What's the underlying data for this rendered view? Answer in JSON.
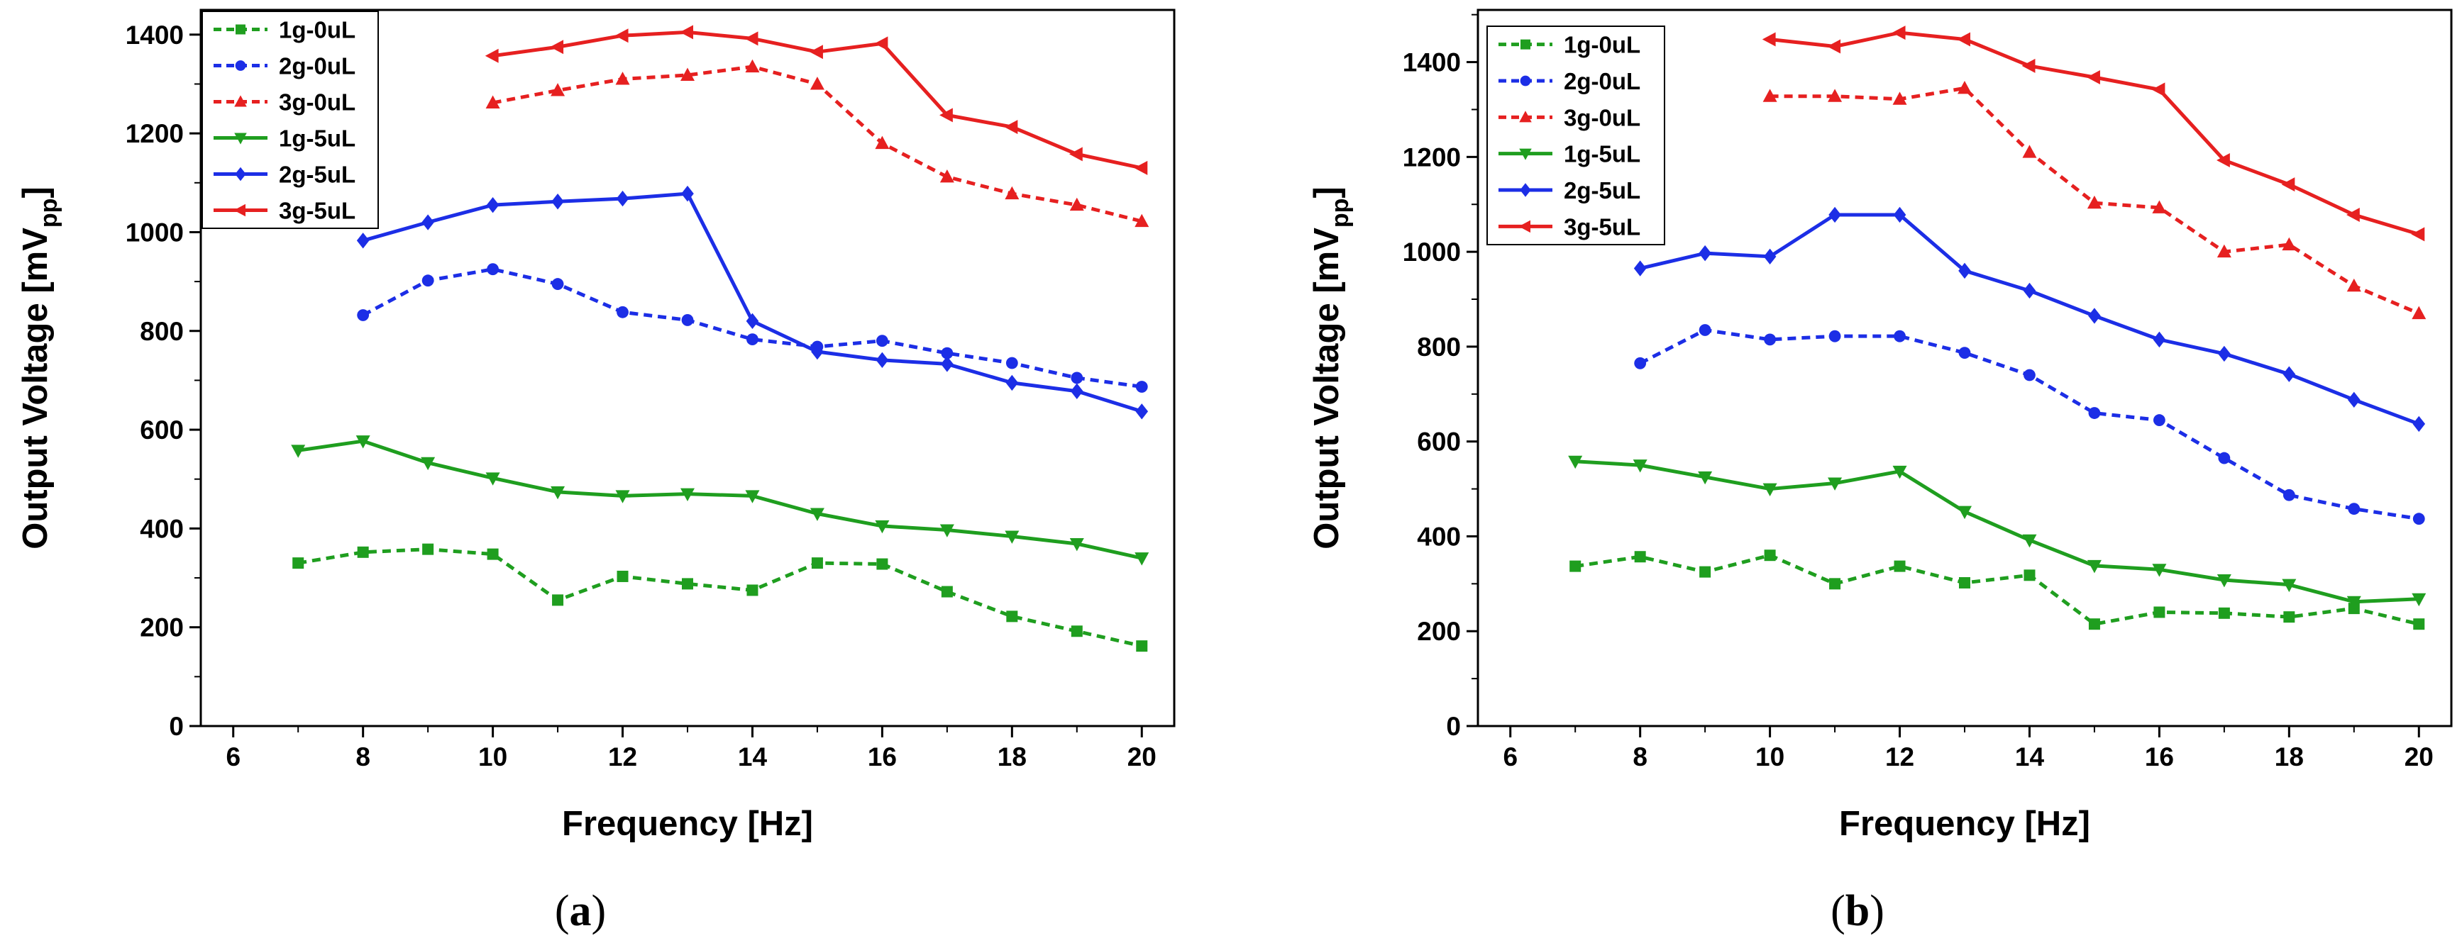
{
  "chart_data": [
    {
      "panel": "a",
      "type": "line",
      "xlabel": "Frequency [Hz]",
      "ylabel": {
        "main": "Output Voltage [mV",
        "sub": "pp",
        "close": "]"
      },
      "xlim": [
        5.5,
        20.5
      ],
      "ylim": [
        0,
        1450
      ],
      "xticks": [
        6,
        8,
        10,
        12,
        14,
        16,
        18,
        20
      ],
      "yticks": [
        0,
        200,
        400,
        600,
        800,
        1000,
        1200,
        1400
      ],
      "legend": "top-left",
      "series": [
        {
          "name": "1g-0uL",
          "color": "#1f9e1f",
          "dash": "dashed",
          "marker": "square",
          "x": [
            7,
            8,
            9,
            10,
            11,
            12,
            13,
            14,
            15,
            16,
            17,
            18,
            19,
            20
          ],
          "values": [
            330,
            352,
            358,
            348,
            255,
            303,
            288,
            275,
            330,
            328,
            272,
            222,
            192,
            162
          ]
        },
        {
          "name": "2g-0uL",
          "color": "#1c2ee6",
          "dash": "dashed",
          "marker": "circle",
          "x": [
            8,
            9,
            10,
            11,
            12,
            13,
            14,
            15,
            16,
            17,
            18,
            19,
            20
          ],
          "values": [
            832,
            902,
            925,
            895,
            838,
            822,
            783,
            768,
            780,
            755,
            735,
            705,
            687
          ]
        },
        {
          "name": "3g-0uL",
          "color": "#e62020",
          "dash": "dashed",
          "marker": "triangle-up",
          "x": [
            10,
            11,
            12,
            13,
            14,
            15,
            16,
            17,
            18,
            19,
            20
          ],
          "values": [
            1262,
            1287,
            1310,
            1318,
            1335,
            1300,
            1180,
            1112,
            1078,
            1055,
            1022
          ]
        },
        {
          "name": "1g-5uL",
          "color": "#1f9e1f",
          "dash": "solid",
          "marker": "triangle-down",
          "x": [
            7,
            8,
            9,
            10,
            11,
            12,
            13,
            14,
            15,
            16,
            17,
            18,
            19,
            20
          ],
          "values": [
            558,
            577,
            533,
            502,
            474,
            466,
            470,
            466,
            430,
            405,
            397,
            384,
            369,
            340
          ]
        },
        {
          "name": "2g-5uL",
          "color": "#1c2ee6",
          "dash": "solid",
          "marker": "diamond",
          "x": [
            8,
            9,
            10,
            11,
            12,
            13,
            14,
            15,
            16,
            17,
            18,
            19,
            20
          ],
          "values": [
            983,
            1020,
            1055,
            1062,
            1068,
            1078,
            820,
            758,
            741,
            733,
            695,
            678,
            637
          ]
        },
        {
          "name": "3g-5uL",
          "color": "#e62020",
          "dash": "solid",
          "marker": "triangle-left",
          "x": [
            10,
            11,
            12,
            13,
            14,
            15,
            16,
            17,
            18,
            19,
            20
          ],
          "values": [
            1357,
            1375,
            1398,
            1405,
            1392,
            1365,
            1382,
            1237,
            1213,
            1158,
            1130
          ]
        }
      ]
    },
    {
      "panel": "b",
      "type": "line",
      "xlabel": "Frequency [Hz]",
      "ylabel": {
        "main": "Output Voltage [mV",
        "sub": "pp",
        "close": "]"
      },
      "xlim": [
        5.5,
        20.5
      ],
      "ylim": [
        0,
        1510
      ],
      "xticks": [
        6,
        8,
        10,
        12,
        14,
        16,
        18,
        20
      ],
      "yticks": [
        0,
        200,
        400,
        600,
        800,
        1000,
        1200,
        1400
      ],
      "legend": "top-left",
      "series": [
        {
          "name": "1g-0uL",
          "color": "#1f9e1f",
          "dash": "dashed",
          "marker": "square",
          "x": [
            7,
            8,
            9,
            10,
            11,
            12,
            13,
            14,
            15,
            16,
            17,
            18,
            19,
            20
          ],
          "values": [
            337,
            357,
            325,
            360,
            300,
            337,
            302,
            318,
            215,
            240,
            238,
            230,
            248,
            215
          ]
        },
        {
          "name": "2g-0uL",
          "color": "#1c2ee6",
          "dash": "dashed",
          "marker": "circle",
          "x": [
            8,
            9,
            10,
            11,
            12,
            13,
            14,
            15,
            16,
            17,
            18,
            19,
            20
          ],
          "values": [
            765,
            835,
            815,
            822,
            822,
            787,
            740,
            660,
            645,
            565,
            487,
            458,
            437
          ]
        },
        {
          "name": "3g-0uL",
          "color": "#e62020",
          "dash": "dashed",
          "marker": "triangle-up",
          "x": [
            10,
            11,
            12,
            13,
            14,
            15,
            16,
            17,
            18,
            19,
            20
          ],
          "values": [
            1328,
            1328,
            1322,
            1345,
            1210,
            1103,
            1093,
            1000,
            1015,
            928,
            870
          ]
        },
        {
          "name": "1g-5uL",
          "color": "#1f9e1f",
          "dash": "solid",
          "marker": "triangle-down",
          "x": [
            7,
            8,
            9,
            10,
            11,
            12,
            13,
            14,
            15,
            16,
            17,
            18,
            19,
            20
          ],
          "values": [
            558,
            550,
            525,
            500,
            512,
            537,
            452,
            392,
            338,
            330,
            308,
            298,
            262,
            268
          ]
        },
        {
          "name": "2g-5uL",
          "color": "#1c2ee6",
          "dash": "solid",
          "marker": "diamond",
          "x": [
            8,
            9,
            10,
            11,
            12,
            13,
            14,
            15,
            16,
            17,
            18,
            19,
            20
          ],
          "values": [
            965,
            997,
            990,
            1078,
            1078,
            960,
            918,
            865,
            815,
            785,
            742,
            688,
            637
          ]
        },
        {
          "name": "3g-5uL",
          "color": "#e62020",
          "dash": "solid",
          "marker": "triangle-left",
          "x": [
            10,
            11,
            12,
            13,
            14,
            15,
            16,
            17,
            18,
            19,
            20
          ],
          "values": [
            1448,
            1433,
            1462,
            1448,
            1392,
            1368,
            1342,
            1193,
            1142,
            1078,
            1037
          ]
        }
      ]
    }
  ]
}
